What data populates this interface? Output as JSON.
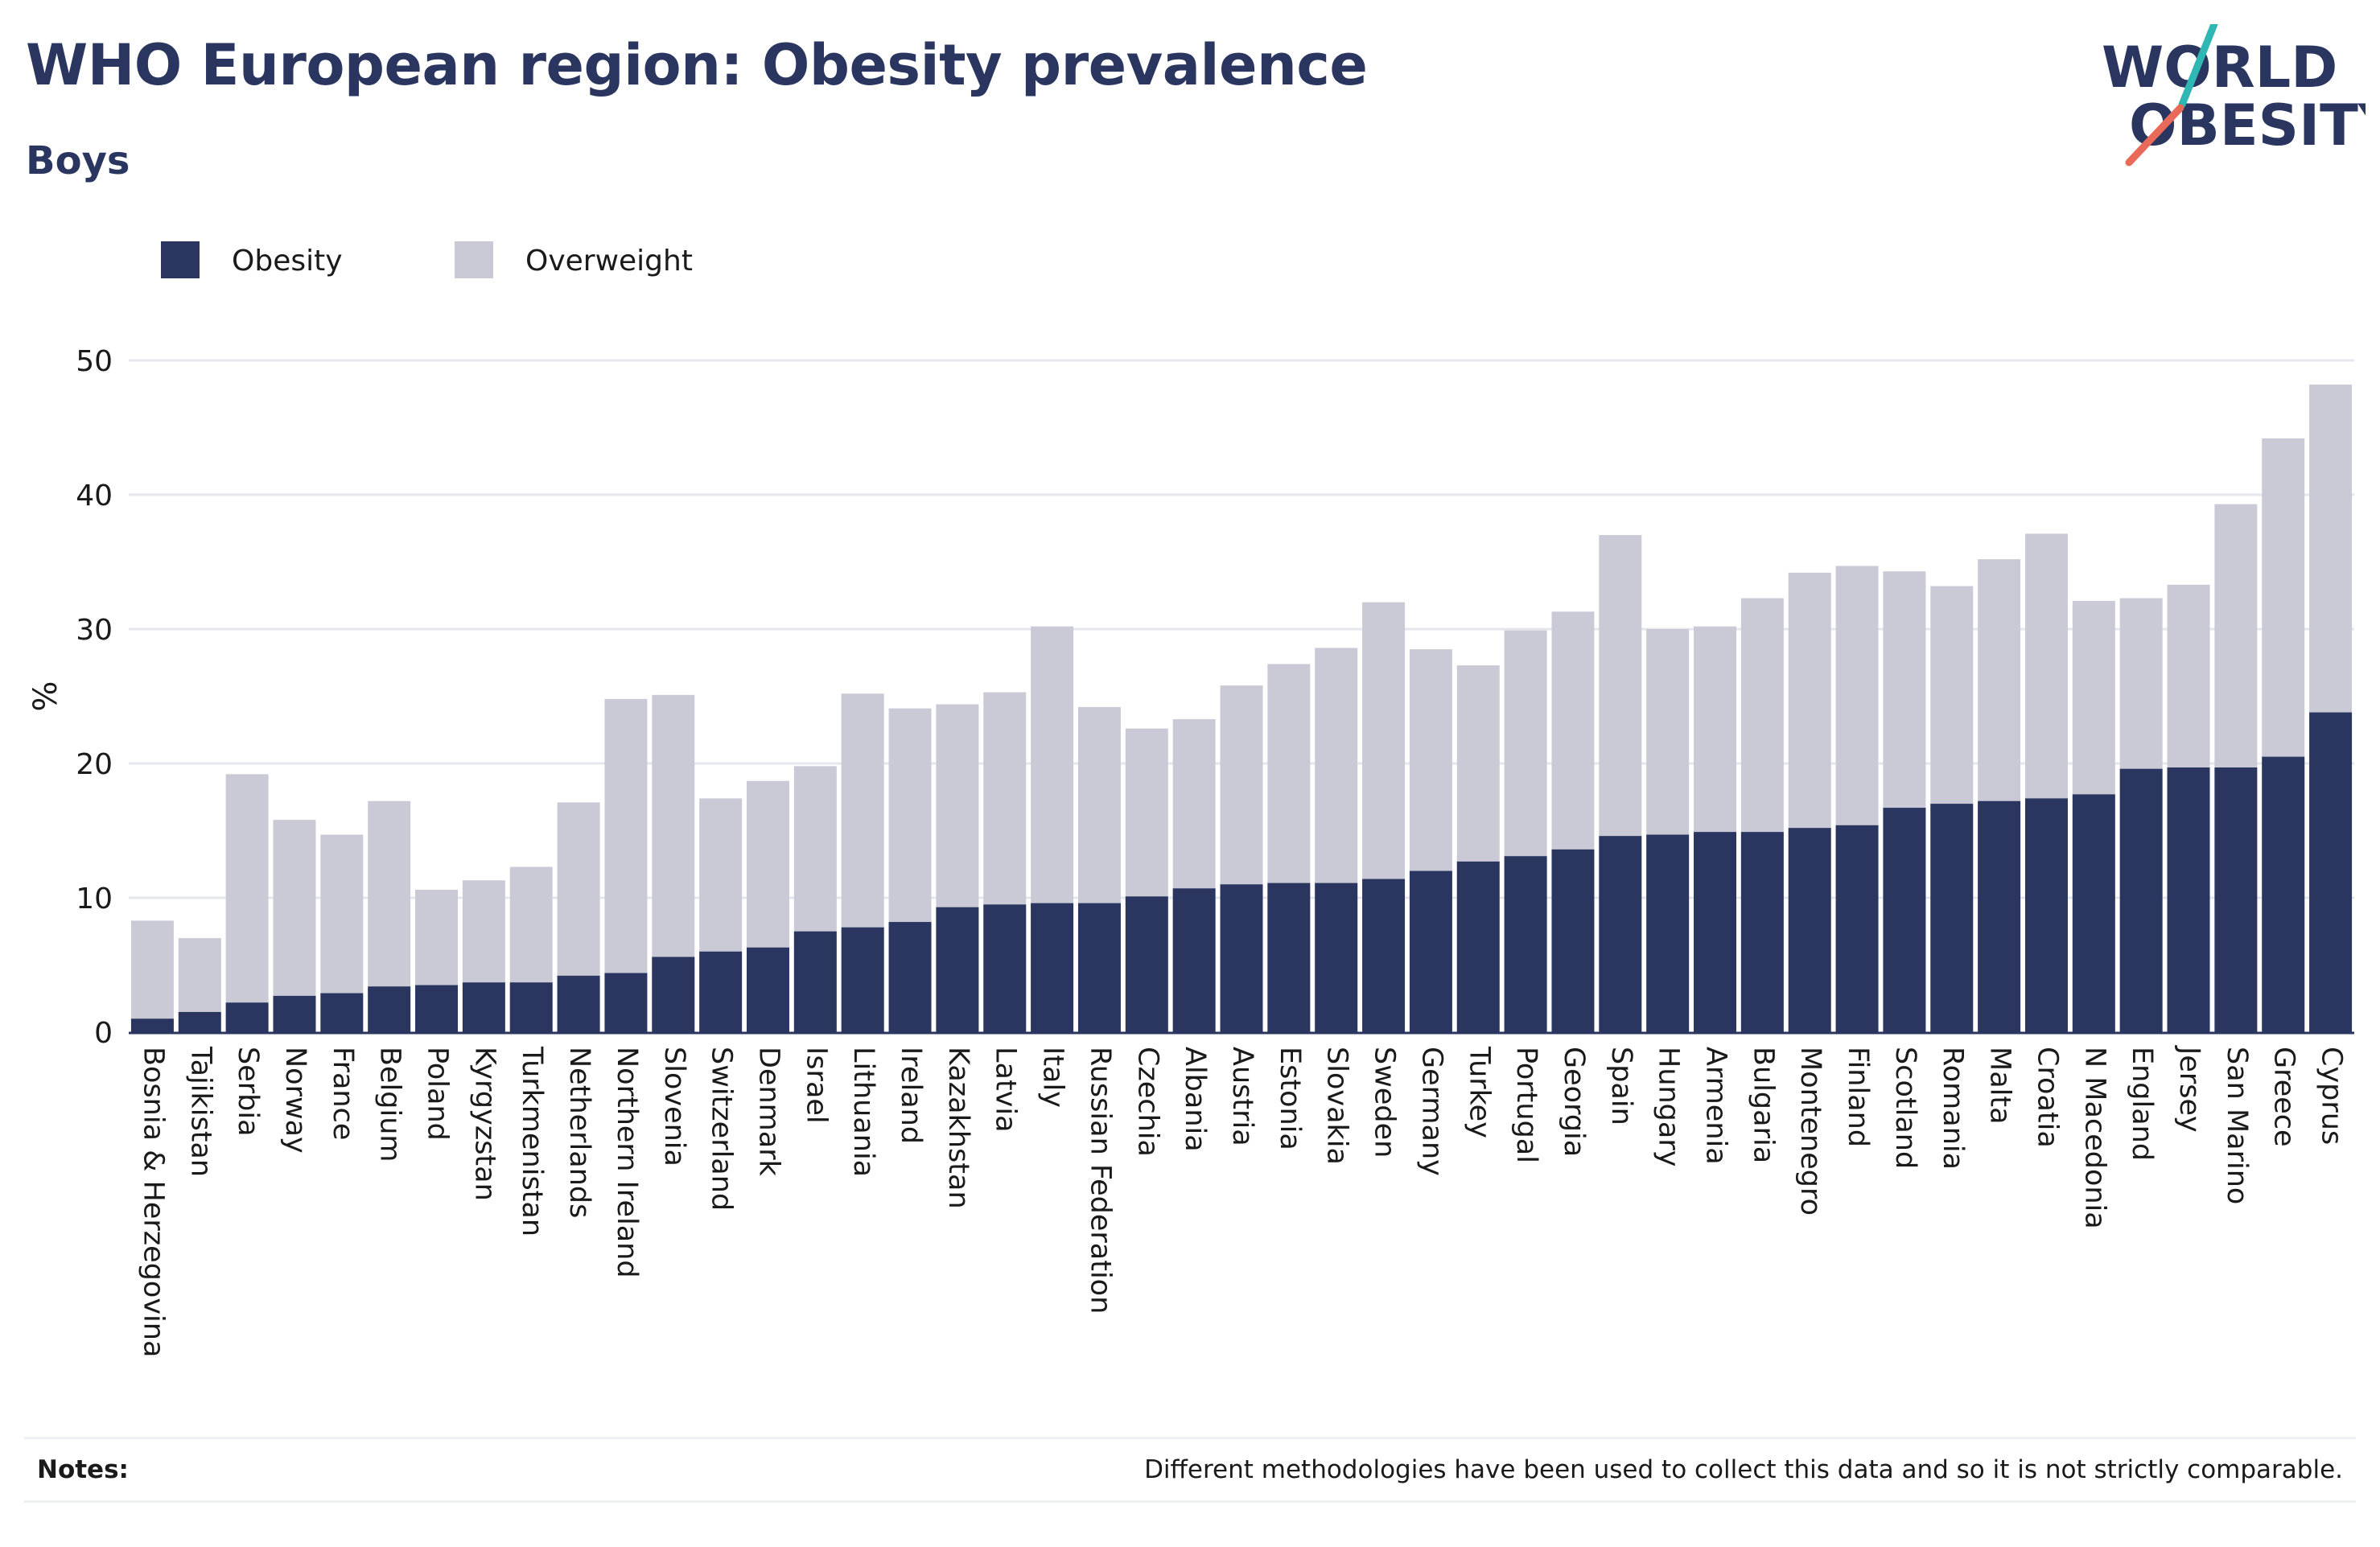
{
  "header": {
    "title": "WHO European region: Obesity prevalence",
    "subtitle": "Boys"
  },
  "logo": {
    "line1": "WORLD",
    "line2": "OBESITY",
    "text_color": "#2a3660",
    "slash_top_color": "#2fb8b3",
    "slash_bottom_color": "#ea6a5a"
  },
  "notes": {
    "label": "Notes:",
    "text": "Different methodologies have been used to collect this data and so it is not strictly comparable."
  },
  "chart_data": {
    "type": "bar",
    "stacked": false,
    "overlay": true,
    "title": "WHO European region: Obesity prevalence",
    "subtitle": "Boys",
    "xlabel": "",
    "ylabel": "%",
    "ylim": [
      0,
      50
    ],
    "yticks": [
      0,
      10,
      20,
      30,
      40,
      50
    ],
    "grid": true,
    "legend_position": "top-left",
    "categories": [
      "Bosnia & Herzegovina",
      "Tajikistan",
      "Serbia",
      "Norway",
      "France",
      "Belgium",
      "Poland",
      "Kyrgyzstan",
      "Turkmenistan",
      "Netherlands",
      "Northern Ireland",
      "Slovenia",
      "Switzerland",
      "Denmark",
      "Israel",
      "Lithuania",
      "Ireland",
      "Kazakhstan",
      "Latvia",
      "Italy",
      "Russian Federation",
      "Czechia",
      "Albania",
      "Austria",
      "Estonia",
      "Slovakia",
      "Sweden",
      "Germany",
      "Turkey",
      "Portugal",
      "Georgia",
      "Spain",
      "Hungary",
      "Armenia",
      "Bulgaria",
      "Montenegro",
      "Finland",
      "Scotland",
      "Romania",
      "Malta",
      "Croatia",
      "N Macedonia",
      "England",
      "Jersey",
      "San Marino",
      "Greece",
      "Cyprus"
    ],
    "series": [
      {
        "name": "Obesity",
        "color": "#2a3660",
        "values": [
          1.0,
          1.5,
          2.2,
          2.7,
          2.9,
          3.4,
          3.5,
          3.7,
          3.7,
          4.2,
          4.4,
          5.6,
          6.0,
          6.3,
          7.5,
          7.8,
          8.2,
          9.3,
          9.5,
          9.6,
          9.6,
          10.1,
          10.7,
          11.0,
          11.1,
          11.1,
          11.4,
          12.0,
          12.7,
          13.1,
          13.6,
          14.6,
          14.7,
          14.9,
          14.9,
          15.2,
          15.4,
          16.7,
          17.0,
          17.2,
          17.4,
          17.7,
          19.6,
          19.7,
          19.7,
          20.5,
          23.8
        ]
      },
      {
        "name": "Overweight",
        "color": "#c9cad5",
        "values": [
          8.3,
          7.0,
          19.2,
          15.8,
          14.7,
          17.2,
          10.6,
          11.3,
          12.3,
          17.1,
          24.8,
          25.1,
          17.4,
          18.7,
          19.8,
          25.2,
          24.1,
          24.4,
          25.3,
          30.2,
          24.2,
          22.6,
          23.3,
          25.8,
          27.4,
          28.6,
          32.0,
          28.5,
          27.3,
          29.9,
          31.3,
          37.0,
          30.0,
          30.2,
          32.3,
          34.2,
          34.7,
          34.3,
          33.2,
          35.2,
          37.1,
          32.1,
          32.3,
          33.3,
          39.3,
          44.2,
          48.2
        ]
      }
    ]
  }
}
